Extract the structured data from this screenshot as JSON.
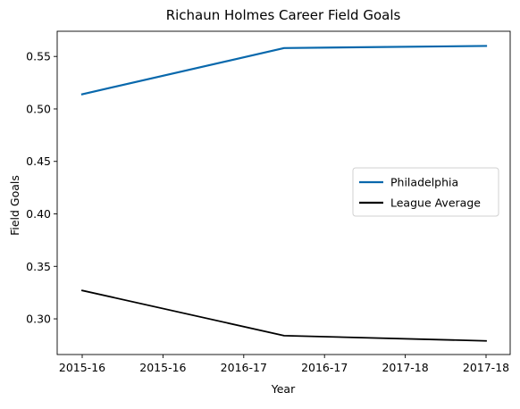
{
  "chart_data": {
    "type": "line",
    "title": "Richaun Holmes Career Field Goals",
    "xlabel": "Year",
    "ylabel": "Field Goals",
    "x": [
      0,
      1,
      2
    ],
    "x_tick_labels": [
      "2015-16",
      "2015-16",
      "2016-17",
      "2016-17",
      "2017-18",
      "2017-18"
    ],
    "ylim": [
      0.266,
      0.574
    ],
    "y_ticks": [
      0.3,
      0.35,
      0.4,
      0.45,
      0.5,
      0.55
    ],
    "y_tick_labels": [
      "0.30",
      "0.35",
      "0.40",
      "0.45",
      "0.50",
      "0.55"
    ],
    "grid": false,
    "legend_position": "right",
    "series": [
      {
        "name": "Philadelphia",
        "values": [
          0.514,
          0.558,
          0.56
        ],
        "color": "#0868ac"
      },
      {
        "name": "League Average",
        "values": [
          0.327,
          0.284,
          0.279
        ],
        "color": "#000000"
      }
    ]
  }
}
